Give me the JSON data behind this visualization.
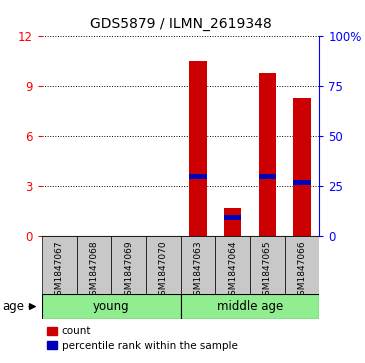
{
  "title": "GDS5879 / ILMN_2619348",
  "samples": [
    "GSM1847067",
    "GSM1847068",
    "GSM1847069",
    "GSM1847070",
    "GSM1847063",
    "GSM1847064",
    "GSM1847065",
    "GSM1847066"
  ],
  "count_values": [
    0,
    0,
    0,
    0,
    10.5,
    1.7,
    9.8,
    8.3
  ],
  "percentile_values_pct": [
    0,
    0,
    0,
    0,
    30,
    9,
    30,
    27
  ],
  "ylim_left": [
    0,
    12
  ],
  "ylim_right": [
    0,
    100
  ],
  "yticks_left": [
    0,
    3,
    6,
    9,
    12
  ],
  "ytick_labels_left": [
    "0",
    "3",
    "6",
    "9",
    "12"
  ],
  "yticks_right": [
    0,
    25,
    50,
    75,
    100
  ],
  "ytick_labels_right": [
    "0",
    "25",
    "50",
    "75",
    "100%"
  ],
  "bar_color_red": "#CC0000",
  "bar_color_blue": "#0000BB",
  "bar_width": 0.5,
  "sample_box_color": "#C8C8C8",
  "group_color": "#90EE90",
  "age_label": "age",
  "legend_count": "count",
  "legend_percentile": "percentile rank within the sample",
  "young_label": "young",
  "middle_label": "middle age"
}
